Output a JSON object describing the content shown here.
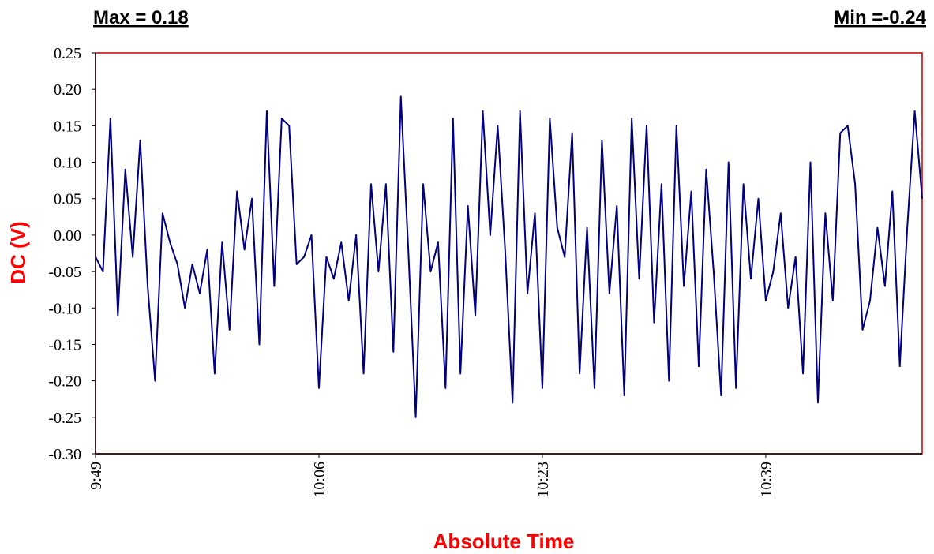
{
  "chart_data": {
    "type": "line",
    "annotations": [
      "Max = 0.18",
      "Min =-0.24"
    ],
    "xlabel": "Absolute Time",
    "ylabel": "DC (V)",
    "categories": [
      "9:49",
      null,
      null,
      null,
      null,
      null,
      null,
      null,
      null,
      null,
      null,
      null,
      null,
      null,
      null,
      null,
      null,
      null,
      null,
      null,
      null,
      null,
      null,
      null,
      null,
      null,
      null,
      null,
      null,
      null,
      "10:06",
      null,
      null,
      null,
      null,
      null,
      null,
      null,
      null,
      null,
      null,
      null,
      null,
      null,
      null,
      null,
      null,
      null,
      null,
      null,
      null,
      null,
      null,
      null,
      null,
      null,
      null,
      null,
      null,
      null,
      "10:23",
      null,
      null,
      null,
      null,
      null,
      null,
      null,
      null,
      null,
      null,
      null,
      null,
      null,
      null,
      null,
      null,
      null,
      null,
      null,
      null,
      null,
      null,
      null,
      null,
      null,
      null,
      null,
      null,
      null,
      "10:39",
      null,
      null,
      null,
      null,
      null,
      null,
      null,
      null,
      null,
      null,
      null,
      null,
      null,
      null,
      null,
      null,
      null,
      null,
      null,
      null,
      null
    ],
    "series": [
      {
        "name": "DC",
        "color": "#000080",
        "values": [
          -0.03,
          -0.05,
          0.16,
          -0.11,
          0.09,
          -0.03,
          0.13,
          -0.07,
          -0.2,
          0.03,
          -0.01,
          -0.04,
          -0.1,
          -0.04,
          -0.08,
          -0.02,
          -0.19,
          -0.01,
          -0.13,
          0.06,
          -0.02,
          0.05,
          -0.15,
          0.17,
          -0.07,
          0.16,
          0.15,
          -0.04,
          -0.03,
          0.0,
          -0.21,
          -0.03,
          -0.06,
          -0.01,
          -0.09,
          0.0,
          -0.19,
          0.07,
          -0.05,
          0.07,
          -0.16,
          0.19,
          -0.02,
          -0.25,
          0.07,
          -0.05,
          -0.01,
          -0.21,
          0.16,
          -0.19,
          0.04,
          -0.11,
          0.17,
          0.0,
          0.15,
          -0.02,
          -0.23,
          0.17,
          -0.08,
          0.03,
          -0.21,
          0.16,
          0.01,
          -0.03,
          0.14,
          -0.19,
          0.01,
          -0.21,
          0.13,
          -0.08,
          0.04,
          -0.22,
          0.16,
          -0.06,
          0.15,
          -0.12,
          0.07,
          -0.2,
          0.15,
          -0.07,
          0.06,
          -0.18,
          0.09,
          -0.05,
          -0.22,
          0.1,
          -0.21,
          0.07,
          -0.06,
          0.05,
          -0.09,
          -0.05,
          0.03,
          -0.1,
          -0.03,
          -0.19,
          0.1,
          -0.23,
          0.03,
          -0.09,
          0.14,
          0.15,
          0.07,
          -0.13,
          -0.09,
          0.01,
          -0.07,
          0.06,
          -0.18,
          0.01,
          0.17,
          0.05
        ]
      }
    ],
    "ylim": [
      -0.3,
      0.25
    ],
    "yticks": [
      {
        "value": -0.3,
        "label": "-0.30"
      },
      -0.25,
      {
        "value": -0.2,
        "label": "-0.20"
      },
      -0.15,
      {
        "value": -0.1,
        "label": "-0.10"
      },
      -0.05,
      {
        "value": 0,
        "label": "0.00"
      },
      0.05,
      {
        "value": 0.1,
        "label": "0.10"
      },
      0.15,
      {
        "value": 0.2,
        "label": "0.20"
      },
      0.25
    ],
    "grid": false
  }
}
